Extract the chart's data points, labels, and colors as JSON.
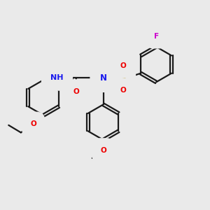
{
  "bg_color": "#eaeaea",
  "bond_color": "#1a1a1a",
  "bond_width": 1.6,
  "atom_colors": {
    "N": "#1a1aee",
    "O": "#ee0000",
    "S": "#b8960c",
    "F": "#cc00cc",
    "H": "#5a9090",
    "C": "#1a1a1a"
  },
  "fs": 7.5,
  "r": 0.72
}
